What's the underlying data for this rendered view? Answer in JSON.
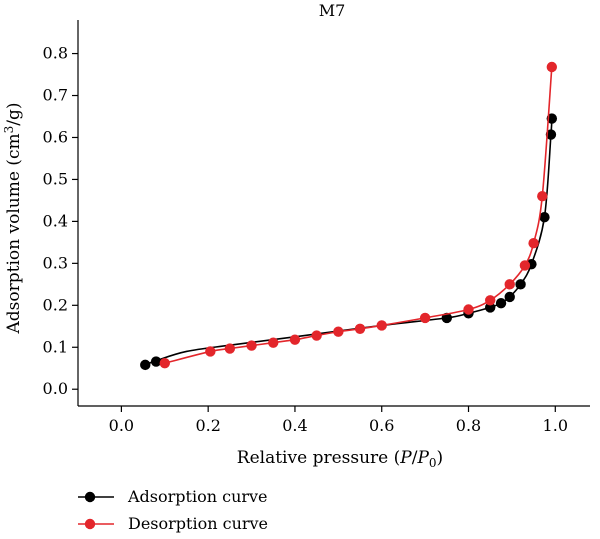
{
  "chart_data": {
    "type": "line",
    "title": "M7",
    "xlabel": {
      "prefix": "Relative pressure (",
      "italic1": "P",
      "slash": "/",
      "italic2": "P",
      "sub": "0",
      "suffix": ")"
    },
    "ylabel": {
      "prefix": "Adsorption volume (cm",
      "sup": "3",
      "suffix": "/g)"
    },
    "xlim": [
      -0.1,
      1.08
    ],
    "ylim": [
      -0.04,
      0.88
    ],
    "xticks": [
      "0.0",
      "0.2",
      "0.4",
      "0.6",
      "0.8",
      "1.0"
    ],
    "yticks": [
      "0.0",
      "0.1",
      "0.2",
      "0.3",
      "0.4",
      "0.5",
      "0.6",
      "0.7",
      "0.8"
    ],
    "grid": false,
    "legend_position": "bottom-left",
    "series": [
      {
        "name": "Adsorption curve",
        "color": "#000000",
        "points": [
          [
            0.055,
            0.058
          ],
          [
            0.08,
            0.066
          ],
          [
            0.75,
            0.17
          ],
          [
            0.8,
            0.181
          ],
          [
            0.85,
            0.195
          ],
          [
            0.875,
            0.205
          ],
          [
            0.895,
            0.22
          ],
          [
            0.92,
            0.25
          ],
          [
            0.945,
            0.298
          ],
          [
            0.975,
            0.41
          ],
          [
            0.99,
            0.607
          ],
          [
            0.992,
            0.645
          ]
        ],
        "curve": [
          [
            0.055,
            0.058
          ],
          [
            0.08,
            0.068
          ],
          [
            0.15,
            0.09
          ],
          [
            0.25,
            0.105
          ],
          [
            0.4,
            0.125
          ],
          [
            0.6,
            0.152
          ],
          [
            0.75,
            0.17
          ],
          [
            0.8,
            0.181
          ],
          [
            0.85,
            0.195
          ],
          [
            0.875,
            0.205
          ],
          [
            0.895,
            0.22
          ],
          [
            0.92,
            0.25
          ],
          [
            0.945,
            0.298
          ],
          [
            0.975,
            0.41
          ],
          [
            0.99,
            0.607
          ],
          [
            0.992,
            0.645
          ]
        ]
      },
      {
        "name": "Desorption curve",
        "color": "#e3262b",
        "points": [
          [
            0.1,
            0.062
          ],
          [
            0.205,
            0.09
          ],
          [
            0.25,
            0.097
          ],
          [
            0.3,
            0.104
          ],
          [
            0.35,
            0.111
          ],
          [
            0.4,
            0.118
          ],
          [
            0.45,
            0.128
          ],
          [
            0.5,
            0.137
          ],
          [
            0.55,
            0.144
          ],
          [
            0.6,
            0.152
          ],
          [
            0.7,
            0.17
          ],
          [
            0.8,
            0.19
          ],
          [
            0.85,
            0.212
          ],
          [
            0.895,
            0.25
          ],
          [
            0.93,
            0.295
          ],
          [
            0.95,
            0.348
          ],
          [
            0.97,
            0.46
          ],
          [
            0.992,
            0.768
          ]
        ]
      }
    ]
  }
}
